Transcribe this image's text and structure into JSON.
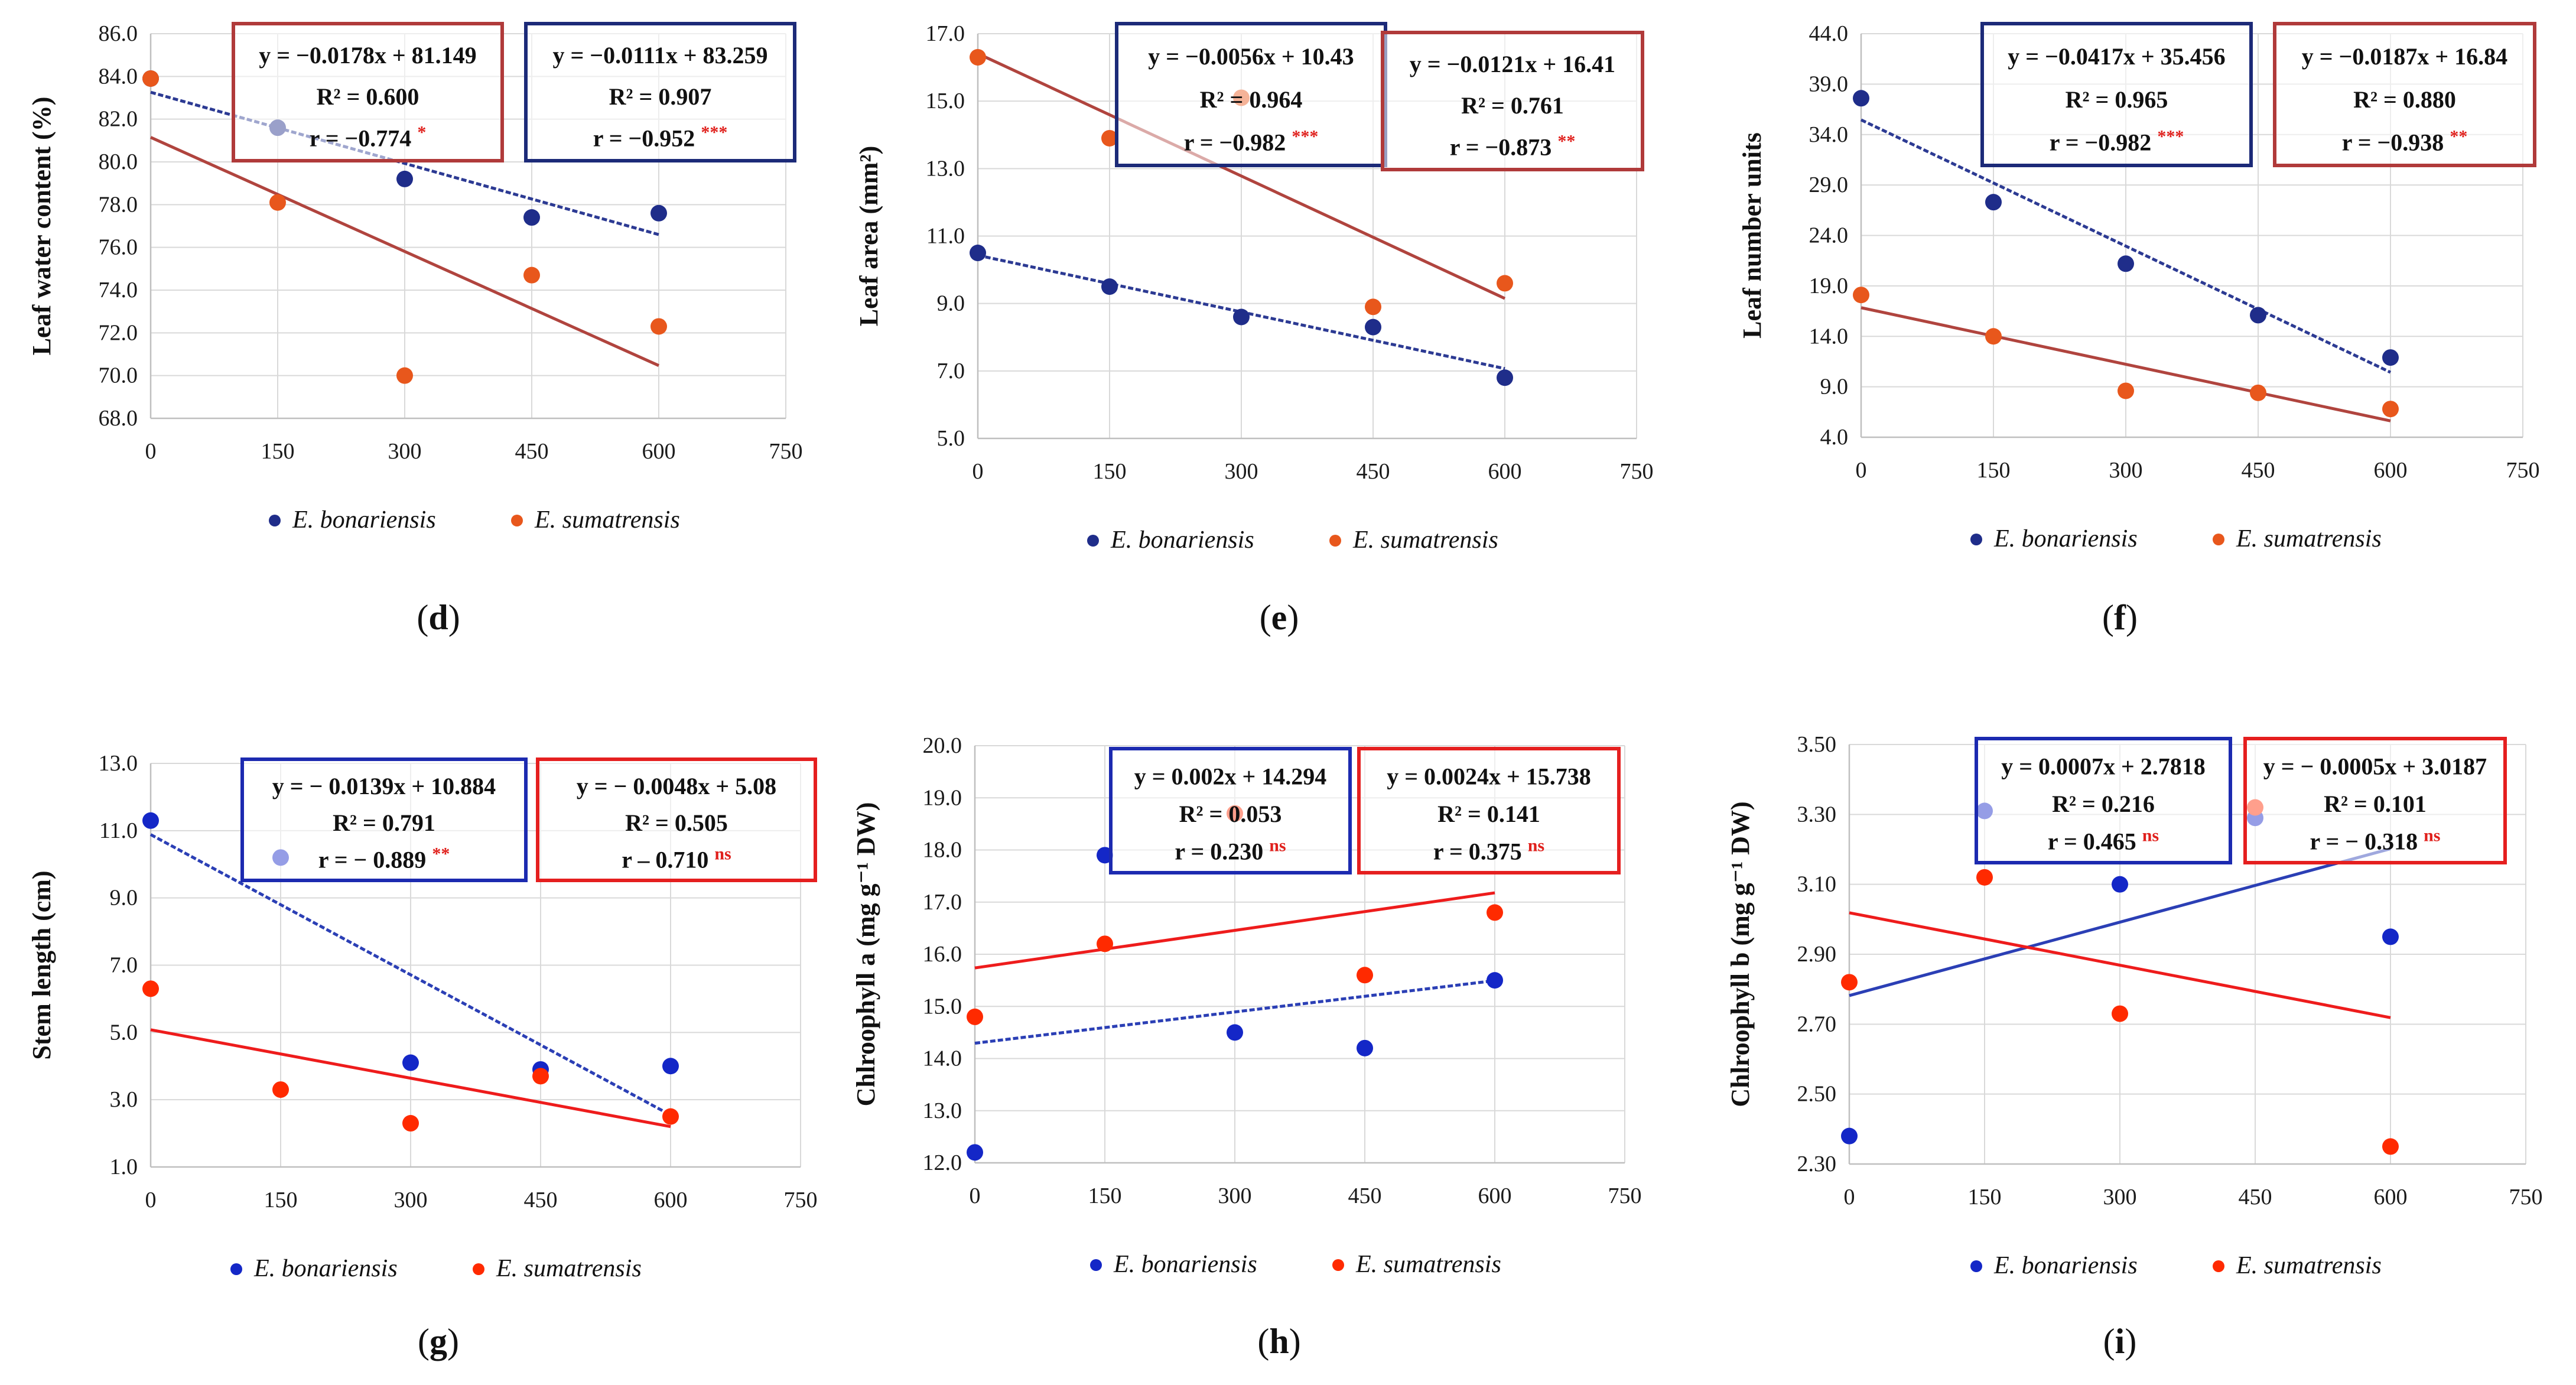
{
  "figure": {
    "legend_series": [
      "E. bonariensis",
      "E. sumatrensis"
    ]
  },
  "chart_data": [
    {
      "panel": "d",
      "type": "scatter",
      "title": "",
      "xlabel": "",
      "ylabel": "Leaf water content (%)",
      "xlim": [
        0,
        750
      ],
      "ylim": [
        68,
        86
      ],
      "xticks": [
        "0",
        "150",
        "300",
        "450",
        "600",
        "750"
      ],
      "yticks": [
        "68.0",
        "70.0",
        "72.0",
        "74.0",
        "76.0",
        "78.0",
        "80.0",
        "82.0",
        "84.0",
        "86.0"
      ],
      "x": [
        0,
        150,
        300,
        450,
        600
      ],
      "series": [
        {
          "name": "E. bonariensis",
          "color": "#1f2d8a",
          "trend_color": "#2c3a93",
          "dashed": true,
          "values": [
            83.9,
            81.6,
            79.2,
            77.4,
            77.6
          ],
          "slope": -0.0111,
          "intercept": 83.259,
          "equation": "y = −0.0111x + 83.259",
          "r2": "R² = 0.907",
          "r": "r = −0.952",
          "sig": "***"
        },
        {
          "name": "E. sumatrensis",
          "color": "#e8571c",
          "trend_color": "#b0443e",
          "dashed": false,
          "values": [
            83.9,
            78.1,
            70.0,
            74.7,
            72.3
          ],
          "slope": -0.0178,
          "intercept": 81.149,
          "equation": "y = −0.0178x + 81.149",
          "r2": "R² = 0.600",
          "r": "r = −0.774",
          "sig": "*"
        }
      ],
      "boxes": [
        {
          "series": 1,
          "border": "#b03a3a"
        },
        {
          "series": 0,
          "border": "#1c2a78"
        }
      ]
    },
    {
      "panel": "e",
      "type": "scatter",
      "title": "",
      "xlabel": "",
      "ylabel": "Leaf area (mm²)",
      "xlim": [
        0,
        750
      ],
      "ylim": [
        5,
        17
      ],
      "xticks": [
        "0",
        "150",
        "300",
        "450",
        "600",
        "750"
      ],
      "yticks": [
        "5.0",
        "7.0",
        "9.0",
        "11.0",
        "13.0",
        "15.0",
        "17.0"
      ],
      "x": [
        0,
        150,
        300,
        450,
        600
      ],
      "series": [
        {
          "name": "E. bonariensis",
          "color": "#1f2d8a",
          "trend_color": "#2c3a93",
          "dashed": true,
          "values": [
            10.5,
            9.5,
            8.6,
            8.3,
            6.8
          ],
          "slope": -0.0056,
          "intercept": 10.43,
          "equation": "y = −0.0056x + 10.43",
          "r2": "R² = 0.964",
          "r": "r = −0.982",
          "sig": "***"
        },
        {
          "name": "E. sumatrensis",
          "color": "#e8571c",
          "trend_color": "#b0443e",
          "dashed": false,
          "values": [
            16.3,
            13.9,
            15.1,
            8.9,
            9.6
          ],
          "slope": -0.0121,
          "intercept": 16.41,
          "equation": "y = −0.0121x + 16.41",
          "r2": "R² = 0.761",
          "r": "r = −0.873",
          "sig": "**"
        }
      ],
      "boxes": [
        {
          "series": 0,
          "border": "#1c2a78"
        },
        {
          "series": 1,
          "border": "#b03a3a"
        }
      ]
    },
    {
      "panel": "f",
      "type": "scatter",
      "title": "",
      "xlabel": "",
      "ylabel": "Leaf number units",
      "xlim": [
        0,
        750
      ],
      "ylim": [
        4,
        44
      ],
      "xticks": [
        "0",
        "150",
        "300",
        "450",
        "600",
        "750"
      ],
      "yticks": [
        "4.0",
        "9.0",
        "14.0",
        "19.0",
        "24.0",
        "29.0",
        "34.0",
        "39.0",
        "44.0"
      ],
      "x": [
        0,
        150,
        300,
        450,
        600
      ],
      "series": [
        {
          "name": "E. bonariensis",
          "color": "#1f2d8a",
          "trend_color": "#2c3a93",
          "dashed": true,
          "values": [
            37.6,
            27.3,
            21.2,
            16.1,
            11.9
          ],
          "slope": -0.0417,
          "intercept": 35.456,
          "equation": "y = −0.0417x + 35.456",
          "r2": "R² = 0.965",
          "r": "r = −0.982",
          "sig": "***"
        },
        {
          "name": "E. sumatrensis",
          "color": "#e8571c",
          "trend_color": "#b0443e",
          "dashed": false,
          "values": [
            18.1,
            14.0,
            8.6,
            8.4,
            6.8
          ],
          "slope": -0.0187,
          "intercept": 16.84,
          "equation": "y = −0.0187x + 16.84",
          "r2": "R² = 0.880",
          "r": "r = −0.938",
          "sig": "**"
        }
      ],
      "boxes": [
        {
          "series": 0,
          "border": "#1c2a78"
        },
        {
          "series": 1,
          "border": "#b03a3a"
        }
      ]
    },
    {
      "panel": "g",
      "type": "scatter",
      "title": "",
      "xlabel": "",
      "ylabel": "Stem length (cm)",
      "xlim": [
        0,
        750
      ],
      "ylim": [
        1,
        13
      ],
      "xticks": [
        "0",
        "150",
        "300",
        "450",
        "600",
        "750"
      ],
      "yticks": [
        "1.0",
        "3.0",
        "5.0",
        "7.0",
        "9.0",
        "11.0",
        "13.0"
      ],
      "x": [
        0,
        150,
        300,
        450,
        600
      ],
      "series": [
        {
          "name": "E. bonariensis",
          "color": "#1427c7",
          "trend_color": "#2b3fb5",
          "dashed": true,
          "values": [
            11.3,
            10.2,
            4.1,
            3.9,
            4.0
          ],
          "slope": -0.0139,
          "intercept": 10.884,
          "equation": "y = −  0.0139x + 10.884",
          "r2": "R² = 0.791",
          "r": "r = − 0.889",
          "sig": "**"
        },
        {
          "name": "E. sumatrensis",
          "color": "#ff2a00",
          "trend_color": "#ee1c1c",
          "dashed": false,
          "values": [
            6.3,
            3.3,
            2.3,
            3.7,
            2.5
          ],
          "slope": -0.0048,
          "intercept": 5.08,
          "equation": "y = −  0.0048x + 5.08",
          "r2": "R² = 0.505",
          "r": "r – 0.710",
          "sig": "ns"
        }
      ],
      "boxes": [
        {
          "series": 0,
          "border": "#1c2ab0"
        },
        {
          "series": 1,
          "border": "#e51f1f"
        }
      ]
    },
    {
      "panel": "h",
      "type": "scatter",
      "title": "",
      "xlabel": "",
      "ylabel": "Chlroophyll a (mg g⁻¹ DW)",
      "xlim": [
        0,
        750
      ],
      "ylim": [
        12,
        20
      ],
      "xticks": [
        "0",
        "150",
        "300",
        "450",
        "600",
        "750"
      ],
      "yticks": [
        "12.0",
        "13.0",
        "14.0",
        "15.0",
        "16.0",
        "17.0",
        "18.0",
        "19.0",
        "20.0"
      ],
      "x": [
        0,
        150,
        300,
        450,
        600
      ],
      "series": [
        {
          "name": "E. bonariensis",
          "color": "#1427c7",
          "trend_color": "#2b3fb5",
          "dashed": true,
          "values": [
            12.2,
            17.9,
            14.5,
            14.2,
            15.5
          ],
          "slope": 0.002,
          "intercept": 14.294,
          "equation": "y = 0.002x + 14.294",
          "r2": "R² = 0.053",
          "r": "r = 0.230",
          "sig": "ns"
        },
        {
          "name": "E. sumatrensis",
          "color": "#ff2a00",
          "trend_color": "#ee1c1c",
          "dashed": false,
          "values": [
            14.8,
            16.2,
            18.7,
            15.6,
            16.8
          ],
          "slope": 0.0024,
          "intercept": 15.738,
          "equation": "y = 0.0024x + 15.738",
          "r2": "R² = 0.141",
          "r": "r = 0.375",
          "sig": "ns"
        }
      ],
      "boxes": [
        {
          "series": 0,
          "border": "#1c2ab0"
        },
        {
          "series": 1,
          "border": "#e51f1f"
        }
      ]
    },
    {
      "panel": "i",
      "type": "scatter",
      "title": "",
      "xlabel": "",
      "ylabel": "Chlroophyll b (mg g⁻¹ DW)",
      "xlim": [
        0,
        750
      ],
      "ylim": [
        2.3,
        3.5
      ],
      "xticks": [
        "0",
        "150",
        "300",
        "450",
        "600",
        "750"
      ],
      "yticks": [
        "2.30",
        "2.50",
        "2.70",
        "2.90",
        "3.10",
        "3.30",
        "3.50"
      ],
      "x": [
        0,
        150,
        300,
        450,
        600
      ],
      "series": [
        {
          "name": "E. bonariensis",
          "color": "#1427c7",
          "trend_color": "#2b3fb5",
          "dashed": false,
          "values": [
            2.38,
            3.31,
            3.1,
            3.29,
            2.95
          ],
          "slope": 0.0007,
          "intercept": 2.7818,
          "equation": "y = 0.0007x + 2.7818",
          "r2": "R² = 0.216",
          "r": "r = 0.465",
          "sig": "ns"
        },
        {
          "name": "E. sumatrensis",
          "color": "#ff2a00",
          "trend_color": "#ee1c1c",
          "dashed": false,
          "values": [
            2.82,
            3.12,
            2.73,
            3.32,
            2.35
          ],
          "slope": -0.0005,
          "intercept": 3.0187,
          "equation": "y = −  0.0005x + 3.0187",
          "r2": "R² = 0.101",
          "r": "r = − 0.318",
          "sig": "ns"
        }
      ],
      "boxes": [
        {
          "series": 0,
          "border": "#1c2ab0"
        },
        {
          "series": 1,
          "border": "#e51f1f"
        }
      ]
    }
  ]
}
